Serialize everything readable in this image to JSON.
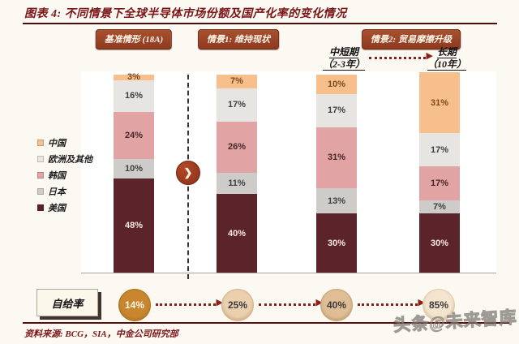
{
  "title": "图表 4:  不同情景下全球半导体市场份额及国产化率的变化情况",
  "header": {
    "scenario_badges": [
      "基准情形 (18A)",
      "情景1: 维持现状",
      "情景2: 贸易摩擦升级"
    ],
    "period_labels": [
      {
        "name": "中短期",
        "years": "（2-3年）"
      },
      {
        "name": "长期",
        "years": "（10年）"
      }
    ]
  },
  "legend": [
    {
      "label": "中国",
      "color": "#F6BF8B"
    },
    {
      "label": "欧洲及其他",
      "color": "#E7E5E2"
    },
    {
      "label": "韩国",
      "color": "#E1A3A3"
    },
    {
      "label": "日本",
      "color": "#CECCC9"
    },
    {
      "label": "美国",
      "color": "#5B242A"
    }
  ],
  "chart_data": {
    "type": "bar",
    "stacked": true,
    "unit": "%",
    "categories": [
      "基准情形 (18A)",
      "情景1: 维持现状",
      "情景2 中短期（2-3年）",
      "情景2 长期（10年）"
    ],
    "series": [
      {
        "name": "中国",
        "color": "#F6BF8B",
        "label_color": "#7B4A1E",
        "values": [
          3,
          7,
          10,
          31
        ]
      },
      {
        "name": "欧洲及其他",
        "color": "#E7E5E2",
        "label_color": "#3F3F3F",
        "values": [
          16,
          17,
          17,
          17
        ]
      },
      {
        "name": "韩国",
        "color": "#E1A3A3",
        "label_color": "#46262A",
        "values": [
          24,
          26,
          31,
          17
        ]
      },
      {
        "name": "日本",
        "color": "#CECCC9",
        "label_color": "#3F3F3F",
        "values": [
          10,
          11,
          13,
          7
        ]
      },
      {
        "name": "美国",
        "color": "#5B242A",
        "label_color": "#F4EADF",
        "values": [
          48,
          40,
          30,
          30
        ]
      }
    ],
    "legend_position": "left",
    "grid": false,
    "ylim": [
      0,
      102
    ]
  },
  "self_rate": {
    "label": "自给率",
    "values": [
      "14%",
      "25%",
      "40%",
      "85%"
    ],
    "circle_colors": [
      "#C8872E",
      "#EBD0AE",
      "#DFBE96",
      "#F3E4CD"
    ],
    "circle_text_colors": [
      "#FDF6EA",
      "#3A3A3A",
      "#3A3A3A",
      "#3A3A3A"
    ],
    "circle_border_colors": [
      "#A86E1F",
      "#D6B48C",
      "#C7A276",
      "#E0CBAE"
    ]
  },
  "icons": {
    "chevron_right": "❯",
    "arrow_head": "▶"
  },
  "source": "资料来源: BCG，SIA，中金公司研究部",
  "watermark": "头条@未来智库",
  "colors": {
    "accent_dark_red": "#7A1417",
    "badge_bg": "#9A452B",
    "arrow": "#8B2015",
    "page_bg": "#FCF9F2"
  }
}
